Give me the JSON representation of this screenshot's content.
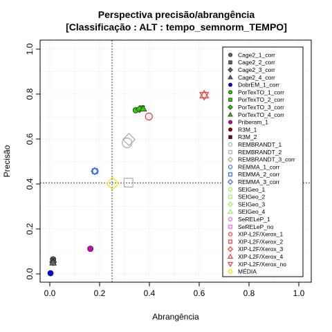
{
  "chart_data": {
    "type": "scatter",
    "title": "Perspectiva precisão/abrangência",
    "subtitle": "[Classificação : ALT : tempo_semnorm_TEMPO]",
    "xlabel": "Abrangência",
    "ylabel": "Precisão",
    "xlim": [
      0,
      1
    ],
    "ylim": [
      0,
      1
    ],
    "xticks": [
      "0.0",
      "0.2",
      "0.4",
      "0.6",
      "0.8",
      "1.0"
    ],
    "yticks": [
      "0.0",
      "0.2",
      "0.4",
      "0.6",
      "0.8",
      "1.0"
    ],
    "grid": true,
    "legend_position": "right",
    "reference_lines": {
      "x": 0.25,
      "y": 0.405
    },
    "series": [
      {
        "name": "Cage2_1_corr",
        "shape": "circle",
        "color": "#666666",
        "fill": true,
        "x": 0.013,
        "y": 0.065
      },
      {
        "name": "Cage2_2_corr",
        "shape": "square",
        "color": "#666666",
        "fill": true,
        "x": 0.013,
        "y": 0.058
      },
      {
        "name": "Cage2_3_corr",
        "shape": "diamond",
        "color": "#666666",
        "fill": true,
        "x": 0.013,
        "y": 0.052
      },
      {
        "name": "Cage2_4_corr",
        "shape": "triangle",
        "color": "#666666",
        "fill": true,
        "x": 0.013,
        "y": 0.05
      },
      {
        "name": "DobrEM_1_corr",
        "shape": "circle",
        "color": "#0000ee",
        "fill": true,
        "x": 0.003,
        "y": 0.003
      },
      {
        "name": "PorTexTO_1_corr",
        "shape": "circle",
        "color": "#33cc00",
        "fill": true,
        "x": 0.345,
        "y": 0.728
      },
      {
        "name": "PorTexTO_2_corr",
        "shape": "square",
        "color": "#33cc00",
        "fill": true,
        "x": 0.37,
        "y": 0.737
      },
      {
        "name": "PorTexTO_3_corr",
        "shape": "diamond",
        "color": "#33cc00",
        "fill": true,
        "x": 0.36,
        "y": 0.733
      },
      {
        "name": "PorTexTO_4_corr",
        "shape": "triangle",
        "color": "#33cc00",
        "fill": true,
        "x": 0.375,
        "y": 0.735
      },
      {
        "name": "Priberam_1",
        "shape": "circle",
        "color": "#cc00cc",
        "fill": true,
        "x": 0.163,
        "y": 0.112
      },
      {
        "name": "R3M_1",
        "shape": "circle",
        "color": "#8b0000",
        "fill": true
      },
      {
        "name": "R3M_2",
        "shape": "square",
        "color": "#8b0000",
        "fill": true
      },
      {
        "name": "REMBRANDT_1",
        "shape": "circle",
        "color": "#aaaaaa",
        "fill": false,
        "x": 0.31,
        "y": 0.583
      },
      {
        "name": "REMBRANDT_2",
        "shape": "square",
        "color": "#aaaaaa",
        "fill": false,
        "x": 0.316,
        "y": 0.406
      },
      {
        "name": "REMBRANDT_3_corr",
        "shape": "diamond",
        "color": "#aaaaaa",
        "fill": false,
        "x": 0.318,
        "y": 0.598
      },
      {
        "name": "REMMA_1_corr",
        "shape": "circle",
        "color": "#3366ff",
        "fill": false,
        "x": 0.183,
        "y": 0.457
      },
      {
        "name": "REMMA_2_corr",
        "shape": "square",
        "color": "#3366ff",
        "fill": false,
        "x": 0.181,
        "y": 0.457
      },
      {
        "name": "REMMA_3_corr",
        "shape": "diamond",
        "color": "#3366ff",
        "fill": false,
        "x": 0.18,
        "y": 0.457
      },
      {
        "name": "SEIGeo_1",
        "shape": "circle",
        "color": "#99ee66",
        "fill": false
      },
      {
        "name": "SEIGeo_2",
        "shape": "square",
        "color": "#99ee66",
        "fill": false
      },
      {
        "name": "SEIGeo_3",
        "shape": "diamond",
        "color": "#99ee66",
        "fill": false
      },
      {
        "name": "SEIGeo_4",
        "shape": "triangle",
        "color": "#99ee66",
        "fill": false
      },
      {
        "name": "SeRELeP_1",
        "shape": "circle",
        "color": "#ee66ee",
        "fill": false
      },
      {
        "name": "SeRELeP_no",
        "shape": "square",
        "color": "#ee66ee",
        "fill": false
      },
      {
        "name": "XIP-L2F/Xerox_1",
        "shape": "circle",
        "color": "#ff3333",
        "fill": false,
        "x": 0.398,
        "y": 0.7
      },
      {
        "name": "XIP-L2F/Xerox_2",
        "shape": "square",
        "color": "#ff3333",
        "fill": false
      },
      {
        "name": "XIP-L2F/Xerox_3",
        "shape": "diamond",
        "color": "#ff3333",
        "fill": false
      },
      {
        "name": "XIP-L2F/Xerox_4",
        "shape": "triangle",
        "color": "#ff3333",
        "fill": false,
        "x": 0.62,
        "y": 0.797
      },
      {
        "name": "XIP-L2F/Xerox_no",
        "shape": "triangle-down",
        "color": "#ff3333",
        "fill": false,
        "x": 0.62,
        "y": 0.793
      },
      {
        "name": "MÉDIA",
        "shape": "diamond",
        "color": "#ffdd00",
        "fill": false,
        "x": 0.252,
        "y": 0.402
      }
    ]
  }
}
